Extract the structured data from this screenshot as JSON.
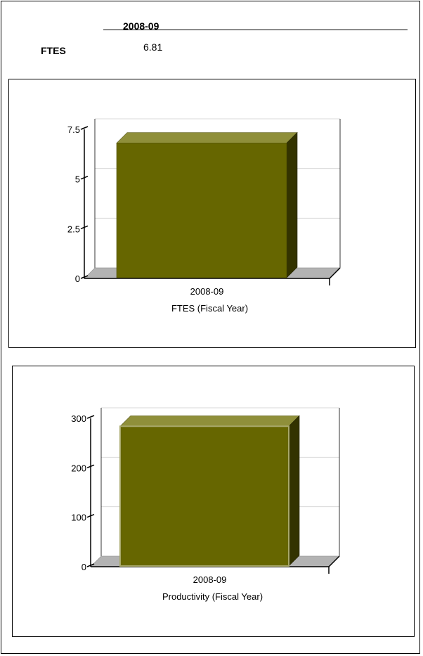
{
  "header": {
    "year": "2008-09"
  },
  "metric": {
    "label": "FTES",
    "value": "6.81"
  },
  "colors": {
    "bar_front": "#666600",
    "bar_top": "#8f8f3a",
    "bar_side": "#333300",
    "floor": "#b3b3b3",
    "grid": "#d9d9d9"
  },
  "chart_data": [
    {
      "type": "bar",
      "categories": [
        "2008-09"
      ],
      "values": [
        6.81
      ],
      "title": "",
      "xlabel": "FTES (Fiscal Year)",
      "ylabel": "",
      "ylim": [
        0,
        7.5
      ],
      "yticks": [
        0,
        2.5,
        5,
        7.5
      ],
      "ytick_labels": [
        "0",
        "2.5",
        "5",
        "7.5"
      ],
      "grid": true
    },
    {
      "type": "bar",
      "categories": [
        "2008-09"
      ],
      "values": [
        284
      ],
      "title": "",
      "xlabel": "Productivity (Fiscal Year)",
      "ylabel": "",
      "ylim": [
        0,
        300
      ],
      "yticks": [
        0,
        100,
        200,
        300
      ],
      "ytick_labels": [
        "0",
        "100",
        "200",
        "300"
      ],
      "grid": true
    }
  ]
}
